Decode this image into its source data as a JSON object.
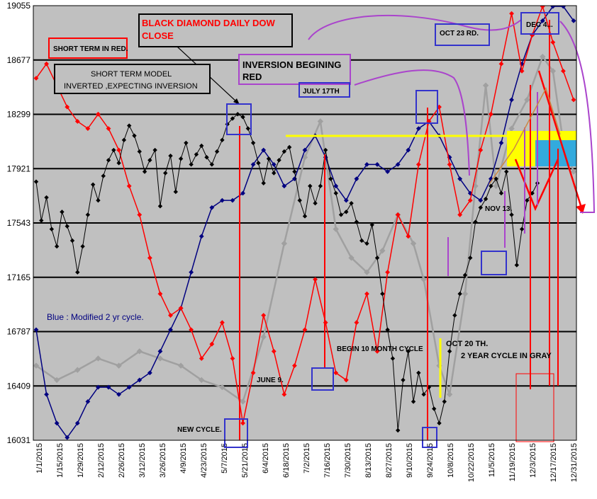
{
  "chart_data": {
    "type": "line",
    "title": "BLACK DIAMOND DAILY DOW CLOSE",
    "xlabel": "",
    "ylabel": "",
    "ylim": [
      16031,
      19055
    ],
    "y_ticks": [
      16031,
      16409,
      16787,
      17165,
      17543,
      17921,
      18299,
      18677,
      19055
    ],
    "x_tick_labels": [
      "1/1/2015",
      "1/15/2015",
      "1/29/2015",
      "2/12/2015",
      "2/26/2015",
      "3/12/2015",
      "3/26/2015",
      "4/9/2015",
      "4/23/2015",
      "5/7/2015",
      "5/21/2015",
      "6/4/2015",
      "6/18/2015",
      "7/2/2015",
      "7/16/2015",
      "7/30/2015",
      "8/13/2015",
      "8/27/2015",
      "9/10/2015",
      "9/24/2015",
      "10/8/2015",
      "10/22/2015",
      "11/5/2015",
      "11/19/2015",
      "12/3/2015",
      "12/17/2015",
      "12/31/2015"
    ],
    "grid": true,
    "colors": {
      "plot_bg": "#c0c0c0",
      "dow": "#000000",
      "short_term": "#ff0000",
      "two_year": "#a0a0a0",
      "modified_two_year": "#000080",
      "projection": "#ffff00",
      "annotation_box": "#3333cc",
      "purple_marker": "#aa44cc"
    },
    "series": [
      {
        "key": "dow",
        "color": "#000000",
        "values": [
          [
            0,
            17830
          ],
          [
            1,
            17560
          ],
          [
            2,
            17720
          ],
          [
            3,
            17500
          ],
          [
            4,
            17380
          ],
          [
            5,
            17620
          ],
          [
            6,
            17520
          ],
          [
            7,
            17420
          ],
          [
            8,
            17200
          ],
          [
            9,
            17380
          ],
          [
            10,
            17600
          ],
          [
            11,
            17810
          ],
          [
            12,
            17700
          ],
          [
            13,
            17870
          ],
          [
            14,
            17980
          ],
          [
            15,
            18050
          ],
          [
            16,
            17960
          ],
          [
            17,
            18120
          ],
          [
            18,
            18220
          ],
          [
            19,
            18150
          ],
          [
            20,
            18040
          ],
          [
            21,
            17900
          ],
          [
            22,
            17980
          ],
          [
            23,
            18050
          ],
          [
            24,
            17660
          ],
          [
            25,
            17890
          ],
          [
            26,
            18010
          ],
          [
            27,
            17760
          ],
          [
            28,
            17990
          ],
          [
            29,
            18100
          ],
          [
            30,
            17950
          ],
          [
            31,
            18020
          ],
          [
            32,
            18080
          ],
          [
            33,
            18000
          ],
          [
            34,
            17950
          ],
          [
            35,
            18040
          ],
          [
            36,
            18120
          ],
          [
            37,
            18230
          ],
          [
            38,
            18270
          ],
          [
            39,
            18300
          ],
          [
            40,
            18280
          ],
          [
            41,
            18200
          ],
          [
            42,
            18100
          ],
          [
            43,
            17960
          ],
          [
            44,
            17820
          ],
          [
            45,
            17990
          ],
          [
            46,
            17890
          ],
          [
            47,
            17980
          ],
          [
            48,
            18040
          ],
          [
            49,
            18070
          ],
          [
            50,
            17900
          ],
          [
            51,
            17700
          ],
          [
            52,
            17590
          ],
          [
            53,
            17800
          ],
          [
            54,
            17680
          ],
          [
            55,
            17800
          ],
          [
            56,
            18050
          ],
          [
            57,
            17850
          ],
          [
            58,
            17750
          ],
          [
            59,
            17600
          ],
          [
            60,
            17620
          ],
          [
            61,
            17680
          ],
          [
            62,
            17550
          ],
          [
            63,
            17420
          ],
          [
            64,
            17400
          ],
          [
            65,
            17530
          ],
          [
            66,
            17300
          ],
          [
            67,
            17050
          ],
          [
            68,
            16800
          ],
          [
            69,
            16600
          ],
          [
            70,
            16100
          ],
          [
            71,
            16450
          ],
          [
            72,
            16650
          ],
          [
            73,
            16300
          ],
          [
            74,
            16500
          ],
          [
            75,
            16350
          ],
          [
            76,
            16400
          ],
          [
            77,
            16250
          ],
          [
            78,
            16150
          ],
          [
            79,
            16300
          ],
          [
            80,
            16650
          ],
          [
            81,
            16900
          ],
          [
            82,
            17050
          ],
          [
            83,
            17180
          ],
          [
            84,
            17300
          ],
          [
            85,
            17550
          ],
          [
            86,
            17650
          ],
          [
            87,
            17710
          ],
          [
            88,
            17800
          ],
          [
            89,
            17850
          ],
          [
            90,
            17750
          ],
          [
            91,
            17900
          ],
          [
            92,
            17600
          ],
          [
            93,
            17250
          ],
          [
            94,
            17500
          ],
          [
            95,
            17700
          ],
          [
            96,
            17750
          ],
          [
            97,
            17820
          ]
        ]
      },
      {
        "key": "short_term",
        "color": "#ff0000",
        "values": [
          [
            0,
            18550
          ],
          [
            2,
            18650
          ],
          [
            4,
            18500
          ],
          [
            6,
            18350
          ],
          [
            8,
            18250
          ],
          [
            10,
            18200
          ],
          [
            12,
            18300
          ],
          [
            14,
            18200
          ],
          [
            16,
            18050
          ],
          [
            18,
            17800
          ],
          [
            20,
            17600
          ],
          [
            22,
            17300
          ],
          [
            24,
            17050
          ],
          [
            26,
            16900
          ],
          [
            28,
            16950
          ],
          [
            30,
            16800
          ],
          [
            32,
            16600
          ],
          [
            34,
            16700
          ],
          [
            36,
            16850
          ],
          [
            38,
            16600
          ],
          [
            40,
            16150
          ],
          [
            42,
            16500
          ],
          [
            44,
            16900
          ],
          [
            46,
            16650
          ],
          [
            48,
            16350
          ],
          [
            50,
            16550
          ],
          [
            52,
            16800
          ],
          [
            54,
            17150
          ],
          [
            56,
            16850
          ],
          [
            58,
            16500
          ],
          [
            60,
            16450
          ],
          [
            62,
            16850
          ],
          [
            64,
            17050
          ],
          [
            66,
            16650
          ],
          [
            68,
            17200
          ],
          [
            70,
            17600
          ],
          [
            72,
            17450
          ],
          [
            74,
            17950
          ],
          [
            76,
            18250
          ],
          [
            78,
            18350
          ],
          [
            80,
            17950
          ],
          [
            82,
            17600
          ],
          [
            84,
            17700
          ],
          [
            86,
            18050
          ],
          [
            88,
            18300
          ],
          [
            90,
            18650
          ],
          [
            92,
            19000
          ],
          [
            94,
            18600
          ],
          [
            96,
            18850
          ],
          [
            98,
            19050
          ],
          [
            100,
            18800
          ],
          [
            102,
            18600
          ],
          [
            104,
            18400
          ]
        ]
      },
      {
        "key": "two_year",
        "color": "#a0a0a0",
        "values": [
          [
            0,
            16550
          ],
          [
            4,
            16450
          ],
          [
            8,
            16520
          ],
          [
            12,
            16600
          ],
          [
            16,
            16550
          ],
          [
            20,
            16650
          ],
          [
            24,
            16600
          ],
          [
            28,
            16550
          ],
          [
            32,
            16450
          ],
          [
            36,
            16400
          ],
          [
            40,
            16300
          ],
          [
            44,
            16750
          ],
          [
            48,
            17400
          ],
          [
            52,
            18000
          ],
          [
            55,
            18250
          ],
          [
            58,
            17500
          ],
          [
            61,
            17300
          ],
          [
            64,
            17200
          ],
          [
            67,
            17350
          ],
          [
            70,
            17600
          ],
          [
            73,
            17400
          ],
          [
            75,
            17150
          ],
          [
            78,
            16550
          ],
          [
            80,
            16350
          ],
          [
            83,
            17050
          ],
          [
            85,
            17800
          ],
          [
            87,
            18500
          ],
          [
            89,
            17800
          ],
          [
            92,
            18200
          ],
          [
            95,
            18400
          ],
          [
            98,
            18700
          ],
          [
            100,
            18600
          ],
          [
            102,
            18100
          ],
          [
            104,
            17900
          ]
        ]
      },
      {
        "key": "modified_two_year",
        "color": "#000080",
        "values": [
          [
            0,
            16800
          ],
          [
            2,
            16350
          ],
          [
            4,
            16150
          ],
          [
            6,
            16050
          ],
          [
            8,
            16150
          ],
          [
            10,
            16300
          ],
          [
            12,
            16400
          ],
          [
            14,
            16400
          ],
          [
            16,
            16350
          ],
          [
            18,
            16400
          ],
          [
            20,
            16450
          ],
          [
            22,
            16500
          ],
          [
            24,
            16650
          ],
          [
            26,
            16800
          ],
          [
            28,
            16950
          ],
          [
            30,
            17200
          ],
          [
            32,
            17450
          ],
          [
            34,
            17650
          ],
          [
            36,
            17700
          ],
          [
            38,
            17700
          ],
          [
            40,
            17750
          ],
          [
            42,
            17950
          ],
          [
            44,
            18050
          ],
          [
            46,
            17950
          ],
          [
            48,
            17800
          ],
          [
            50,
            17850
          ],
          [
            52,
            18050
          ],
          [
            54,
            18150
          ],
          [
            56,
            18000
          ],
          [
            58,
            17800
          ],
          [
            60,
            17700
          ],
          [
            62,
            17850
          ],
          [
            64,
            17950
          ],
          [
            66,
            17950
          ],
          [
            68,
            17900
          ],
          [
            70,
            17950
          ],
          [
            72,
            18050
          ],
          [
            74,
            18200
          ],
          [
            76,
            18250
          ],
          [
            78,
            18150
          ],
          [
            80,
            18000
          ],
          [
            82,
            17850
          ],
          [
            84,
            17750
          ],
          [
            86,
            17700
          ],
          [
            88,
            17850
          ],
          [
            90,
            18100
          ],
          [
            92,
            18400
          ],
          [
            94,
            18650
          ],
          [
            96,
            18850
          ],
          [
            98,
            18950
          ],
          [
            100,
            19050
          ],
          [
            102,
            19050
          ],
          [
            104,
            18950
          ]
        ]
      }
    ]
  },
  "labels": {
    "title": "BLACK DIAMOND DAILY DOW CLOSE",
    "short_term_red": "SHORT TERM IN RED.",
    "short_term_model_line1": "SHORT TERM MODEL",
    "short_term_model_line2": "INVERTED ,EXPECTING INVERSION",
    "inversion_line1": "INVERSION BEGINING",
    "inversion_line2": "RED",
    "july17": "JULY 17TH",
    "oct23": "OCT 23 RD.",
    "dec": "DEC 4...",
    "nov13": "NOV 13.",
    "blue_legend": "Blue : Modified 2 yr cycle.",
    "oct20": "OCT 20 TH.",
    "two_year_gray": "2 YEAR CYCLE IN GRAY",
    "begin10": "BEGIN 10 MONTH CYCLE",
    "june9": "JUNE 9.",
    "new_cycle": "NEW CYCLE."
  }
}
